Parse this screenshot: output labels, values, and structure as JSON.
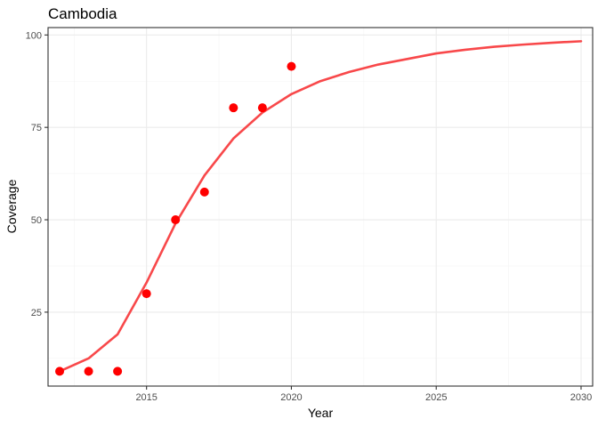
{
  "chart_data": {
    "type": "scatter",
    "title": "Cambodia",
    "xlabel": "Year",
    "ylabel": "Coverage",
    "xlim": [
      2011.6,
      2030.4
    ],
    "ylim": [
      5,
      102
    ],
    "x_ticks": [
      2015,
      2020,
      2025,
      2030
    ],
    "x_tick_labels": [
      "2015",
      "2020",
      "2025",
      "2030"
    ],
    "y_ticks": [
      25,
      50,
      75,
      100
    ],
    "y_tick_labels": [
      "25",
      "50",
      "75",
      "100"
    ],
    "grid": true,
    "legend": "none",
    "series": [
      {
        "kind": "points",
        "color": "#ff0000",
        "x": [
          2012,
          2013,
          2014,
          2015,
          2016,
          2017,
          2018,
          2019,
          2020
        ],
        "y": [
          9,
          9,
          9,
          30,
          50,
          57.5,
          80.3,
          80.3,
          91.5
        ]
      },
      {
        "kind": "line",
        "color": "#f8484a",
        "x": [
          2012,
          2013,
          2014,
          2015,
          2016,
          2017,
          2018,
          2019,
          2020,
          2021,
          2022,
          2023,
          2024,
          2025,
          2026,
          2027,
          2028,
          2029,
          2030
        ],
        "y": [
          9,
          12.5,
          19,
          33,
          49,
          62,
          72,
          79,
          84,
          87.5,
          90,
          92,
          93.5,
          95,
          96,
          96.8,
          97.4,
          97.9,
          98.3
        ]
      }
    ]
  }
}
